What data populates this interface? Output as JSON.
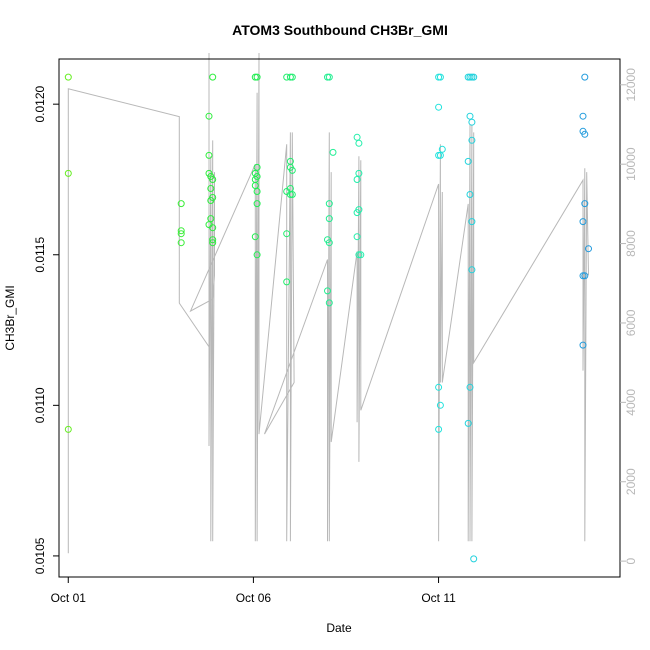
{
  "chart_data": {
    "type": "scatter",
    "title": "ATOM3 Southbound CH3Br_GMI",
    "xlabel": "Date",
    "ylabel": "CH3Br_GMI",
    "x_ticks": [
      {
        "day": 1,
        "label": "Oct 01"
      },
      {
        "day": 6,
        "label": "Oct 06"
      },
      {
        "day": 11,
        "label": "Oct 11"
      }
    ],
    "xlim_day": [
      0.75,
      15.9
    ],
    "ylim": [
      0.01043,
      0.01215
    ],
    "y_ticks": [
      "0.0105",
      "0.0110",
      "0.0115",
      "0.0120"
    ],
    "y2_ticks": [
      "0",
      "2000",
      "4000",
      "6000",
      "8000",
      "10000",
      "12000"
    ],
    "y2lim": [
      -400,
      12650
    ],
    "y2_color": "#b8b8b8",
    "colorscale": [
      "#66ee22",
      "#22ee44",
      "#22eedd",
      "#2299dd"
    ],
    "points": [
      [
        1.0,
        0.01209
      ],
      [
        1.0,
        0.01177
      ],
      [
        1.0,
        0.01092
      ],
      [
        4.05,
        0.01167
      ],
      [
        4.05,
        0.01158
      ],
      [
        4.05,
        0.01157
      ],
      [
        4.05,
        0.01154
      ],
      [
        4.8,
        0.01196
      ],
      [
        4.8,
        0.01183
      ],
      [
        4.8,
        0.01177
      ],
      [
        4.8,
        0.0116
      ],
      [
        4.85,
        0.01176
      ],
      [
        4.85,
        0.01172
      ],
      [
        4.85,
        0.01168
      ],
      [
        4.85,
        0.01162
      ],
      [
        4.9,
        0.01209
      ],
      [
        4.9,
        0.01175
      ],
      [
        4.9,
        0.01169
      ],
      [
        4.9,
        0.01159
      ],
      [
        4.9,
        0.01155
      ],
      [
        4.9,
        0.01154
      ],
      [
        6.05,
        0.01209
      ],
      [
        6.05,
        0.01177
      ],
      [
        6.05,
        0.01175
      ],
      [
        6.05,
        0.01173
      ],
      [
        6.05,
        0.01156
      ],
      [
        6.1,
        0.01209
      ],
      [
        6.1,
        0.01179
      ],
      [
        6.1,
        0.01176
      ],
      [
        6.1,
        0.01171
      ],
      [
        6.1,
        0.01167
      ],
      [
        6.1,
        0.0115
      ],
      [
        6.9,
        0.01209
      ],
      [
        6.9,
        0.01171
      ],
      [
        6.9,
        0.01157
      ],
      [
        6.9,
        0.01141
      ],
      [
        7.0,
        0.01209
      ],
      [
        7.0,
        0.01181
      ],
      [
        7.0,
        0.01179
      ],
      [
        7.0,
        0.01172
      ],
      [
        7.0,
        0.0117
      ],
      [
        7.05,
        0.01209
      ],
      [
        7.05,
        0.01178
      ],
      [
        7.05,
        0.0117
      ],
      [
        8.0,
        0.01209
      ],
      [
        8.0,
        0.01155
      ],
      [
        8.0,
        0.01138
      ],
      [
        8.05,
        0.01209
      ],
      [
        8.05,
        0.01167
      ],
      [
        8.05,
        0.01162
      ],
      [
        8.05,
        0.01154
      ],
      [
        8.05,
        0.01134
      ],
      [
        8.15,
        0.01184
      ],
      [
        8.8,
        0.01189
      ],
      [
        8.8,
        0.01175
      ],
      [
        8.8,
        0.01164
      ],
      [
        8.8,
        0.01156
      ],
      [
        8.85,
        0.01187
      ],
      [
        8.85,
        0.01177
      ],
      [
        8.85,
        0.01165
      ],
      [
        8.85,
        0.0115
      ],
      [
        8.9,
        0.0115
      ],
      [
        11.0,
        0.01209
      ],
      [
        11.0,
        0.01199
      ],
      [
        11.0,
        0.01183
      ],
      [
        11.0,
        0.01106
      ],
      [
        11.0,
        0.01092
      ],
      [
        11.05,
        0.01209
      ],
      [
        11.05,
        0.01183
      ],
      [
        11.05,
        0.011
      ],
      [
        11.1,
        0.01185
      ],
      [
        11.8,
        0.01209
      ],
      [
        11.8,
        0.01181
      ],
      [
        11.8,
        0.01094
      ],
      [
        11.85,
        0.01209
      ],
      [
        11.85,
        0.01196
      ],
      [
        11.85,
        0.0117
      ],
      [
        11.85,
        0.01106
      ],
      [
        11.9,
        0.01209
      ],
      [
        11.9,
        0.01194
      ],
      [
        11.9,
        0.01188
      ],
      [
        11.9,
        0.01161
      ],
      [
        11.9,
        0.01145
      ],
      [
        11.95,
        0.01209
      ],
      [
        11.95,
        0.01049
      ],
      [
        14.9,
        0.01196
      ],
      [
        14.9,
        0.01191
      ],
      [
        14.9,
        0.01161
      ],
      [
        14.9,
        0.01143
      ],
      [
        14.9,
        0.0112
      ],
      [
        14.95,
        0.01209
      ],
      [
        14.95,
        0.01167
      ],
      [
        14.95,
        0.0119
      ],
      [
        14.95,
        0.01143
      ],
      [
        15.05,
        0.01152
      ]
    ],
    "altitude_path": [
      [
        1.0,
        200
      ],
      [
        1.0,
        11900
      ],
      [
        4.0,
        11200
      ],
      [
        4.0,
        6500
      ],
      [
        4.8,
        5400
      ],
      [
        4.8,
        12800
      ],
      [
        4.8,
        2900
      ],
      [
        4.85,
        10200
      ],
      [
        4.85,
        500
      ],
      [
        4.9,
        10600
      ],
      [
        4.9,
        500
      ],
      [
        4.95,
        9800
      ],
      [
        4.95,
        7200
      ],
      [
        4.9,
        6600
      ],
      [
        4.3,
        6300
      ],
      [
        6.05,
        10000
      ],
      [
        6.05,
        500
      ],
      [
        6.1,
        11800
      ],
      [
        6.1,
        500
      ],
      [
        6.15,
        12800
      ],
      [
        6.15,
        3200
      ],
      [
        6.9,
        10500
      ],
      [
        6.9,
        500
      ],
      [
        7.0,
        10800
      ],
      [
        7.0,
        500
      ],
      [
        7.05,
        10800
      ],
      [
        7.1,
        4500
      ],
      [
        6.3,
        3200
      ],
      [
        8.0,
        7600
      ],
      [
        8.0,
        500
      ],
      [
        8.05,
        10800
      ],
      [
        8.05,
        500
      ],
      [
        8.1,
        9800
      ],
      [
        8.1,
        3000
      ],
      [
        8.8,
        7800
      ],
      [
        8.8,
        3500
      ],
      [
        8.85,
        10200
      ],
      [
        8.85,
        2500
      ],
      [
        8.9,
        10100
      ],
      [
        8.9,
        3800
      ],
      [
        11.0,
        9500
      ],
      [
        11.0,
        500
      ],
      [
        11.05,
        10500
      ],
      [
        11.05,
        4500
      ],
      [
        11.1,
        9300
      ],
      [
        11.1,
        4500
      ],
      [
        11.8,
        9000
      ],
      [
        11.8,
        500
      ],
      [
        11.85,
        11000
      ],
      [
        11.85,
        500
      ],
      [
        11.9,
        11000
      ],
      [
        11.9,
        500
      ],
      [
        11.95,
        10800
      ],
      [
        11.95,
        5000
      ],
      [
        14.9,
        9600
      ],
      [
        14.9,
        4800
      ],
      [
        14.95,
        9900
      ],
      [
        14.95,
        500
      ],
      [
        15.0,
        9800
      ],
      [
        15.05,
        7200
      ]
    ]
  }
}
